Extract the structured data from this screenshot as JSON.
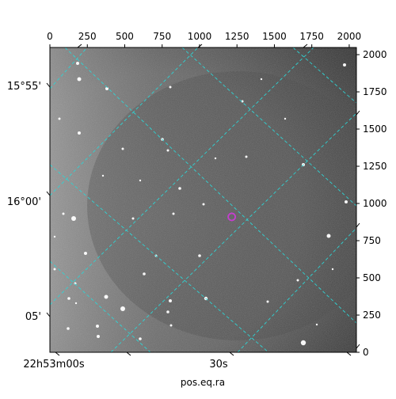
{
  "chart_data": {
    "type": "image",
    "xlabel": "pos.eq.ra",
    "pixel_axis": {
      "x_ticks": [
        0,
        250,
        500,
        750,
        1000,
        1250,
        1500,
        1750,
        2000
      ],
      "y_ticks": [
        0,
        250,
        500,
        750,
        1000,
        1250,
        1500,
        1750,
        2000
      ],
      "xlim": [
        0,
        2048
      ],
      "ylim": [
        0,
        2048
      ]
    },
    "world_axis": {
      "bottom_tick_labels": [
        "22h53m00s",
        "30s"
      ],
      "left_tick_labels": [
        "15°55'",
        "16°00'",
        "05'"
      ]
    },
    "grid": true,
    "grid_color": "#2fd3d3",
    "marker": {
      "shape": "circle",
      "color": "#c53ecf",
      "x_pix": 1215,
      "y_pix": 910
    },
    "colormap": "gray"
  }
}
